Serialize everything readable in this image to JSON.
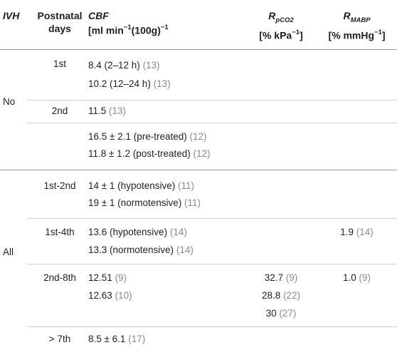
{
  "header": {
    "ivh": "IVH",
    "days_line1": "Postnatal",
    "days_line2": "days",
    "cbf_line1": "CBF",
    "cbf_line2_a": "[ml min",
    "cbf_line2_sup1": "−1",
    "cbf_line2_b": "(100g)",
    "cbf_line2_sup2": "−1",
    "rpco2_main": "R",
    "rpco2_sub": "pCO2",
    "rpco2_unit_a": "[% kPa",
    "rpco2_unit_sup": "−1",
    "rpco2_unit_b": "]",
    "rmabp_main": "R",
    "rmabp_sub": "MABP",
    "rmabp_unit_a": "[% mmHg",
    "rmabp_unit_sup": "−1",
    "rmabp_unit_b": "]"
  },
  "groups": {
    "no": "No",
    "all": "All"
  },
  "days": {
    "d1": "1st",
    "d2": "2nd",
    "d3": "1st-2nd",
    "d4": "1st-4th",
    "d5": "2nd-8th",
    "d6": "> 7th"
  },
  "cbf": {
    "r1": {
      "v": "8.4 (2–12 h)",
      "ref": "(13)"
    },
    "r2": {
      "v": "10.2 (12–24 h)",
      "ref": "(13)"
    },
    "r3": {
      "v": "11.5",
      "ref": "(13)"
    },
    "r4": {
      "v": "16.5 ± 2.1 (pre-treated)",
      "ref": "(12)"
    },
    "r5": {
      "v": "11.8 ± 1.2 (post-treated)",
      "ref": "(12)"
    },
    "r6": {
      "v": "14 ± 1 (hypotensive)",
      "ref": "(11)"
    },
    "r7": {
      "v": "19 ± 1 (normotensive)",
      "ref": "(11)"
    },
    "r8": {
      "v": "13.6 (hypotensive)",
      "ref": "(14)"
    },
    "r9": {
      "v": "13.3 (normotensive)",
      "ref": "(14)"
    },
    "r10": {
      "v": "12.51",
      "ref": "(9)"
    },
    "r11": {
      "v": "12.63",
      "ref": "(10)"
    },
    "r12": {
      "v": "8.5 ± 6.1",
      "ref": "(17)"
    }
  },
  "rpco2": {
    "a": {
      "v": "32.7",
      "ref": "(9)"
    },
    "b": {
      "v": "28.8",
      "ref": "(22)"
    },
    "c": {
      "v": "30",
      "ref": "(27)"
    }
  },
  "rmabp": {
    "a": {
      "v": "1.9",
      "ref": "(14)"
    },
    "b": {
      "v": "1.0",
      "ref": "(9)"
    }
  }
}
